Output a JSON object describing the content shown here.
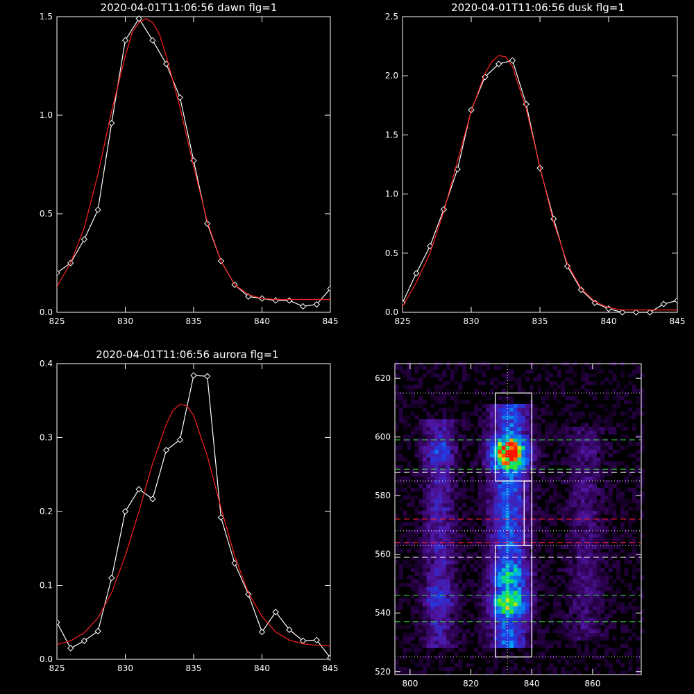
{
  "colors": {
    "background": "#000000",
    "axes": "#ffffff",
    "data_line": "#ffffff",
    "fit_line": "#ff2020",
    "guide_green": "#33dd33",
    "guide_white": "#ffffff",
    "guide_red": "#ff2020"
  },
  "chart_data": [
    {
      "id": "dawn",
      "type": "line",
      "title": "2020-04-01T11:06:56 dawn flg=1",
      "xlim": [
        825,
        845
      ],
      "ylim": [
        0,
        1.5
      ],
      "xticks": [
        825,
        830,
        835,
        840,
        845
      ],
      "xtick_labels": [
        "825",
        "830",
        "835",
        "840",
        "845"
      ],
      "yticks": [
        0,
        0.5,
        1.0,
        1.5
      ],
      "ytick_labels": [
        "0.0",
        "0.5",
        "1.0",
        "1.5"
      ],
      "markers": "diamond",
      "series": [
        {
          "role": "data",
          "x": [
            825,
            826,
            827,
            828,
            829,
            830,
            831,
            832,
            833,
            834,
            835,
            836,
            837,
            838,
            839,
            840,
            841,
            842,
            843,
            844,
            845
          ],
          "y": [
            0.2,
            0.25,
            0.37,
            0.52,
            0.96,
            1.38,
            1.49,
            1.38,
            1.26,
            1.09,
            0.77,
            0.45,
            0.26,
            0.14,
            0.08,
            0.07,
            0.06,
            0.06,
            0.03,
            0.04,
            0.12
          ]
        },
        {
          "role": "fit",
          "x": [
            825,
            826,
            827,
            828,
            829,
            830,
            830.5,
            831,
            831.5,
            832,
            832.5,
            833,
            834,
            835,
            836,
            837,
            838,
            839,
            840,
            841,
            842,
            843,
            844,
            845
          ],
          "y": [
            0.13,
            0.25,
            0.43,
            0.7,
            1.02,
            1.3,
            1.42,
            1.47,
            1.49,
            1.47,
            1.41,
            1.3,
            1.04,
            0.74,
            0.46,
            0.26,
            0.14,
            0.09,
            0.07,
            0.065,
            0.065,
            0.065,
            0.065,
            0.065
          ]
        }
      ]
    },
    {
      "id": "dusk",
      "type": "line",
      "title": "2020-04-01T11:06:56 dusk flg=1",
      "xlim": [
        825,
        845
      ],
      "ylim": [
        0,
        2.5
      ],
      "xticks": [
        825,
        830,
        835,
        840,
        845
      ],
      "xtick_labels": [
        "825",
        "830",
        "835",
        "840",
        "845"
      ],
      "yticks": [
        0,
        0.5,
        1.0,
        1.5,
        2.0,
        2.5
      ],
      "ytick_labels": [
        "0.0",
        "0.5",
        "1.0",
        "1.5",
        "2.0",
        "2.5"
      ],
      "markers": "diamond",
      "series": [
        {
          "role": "data",
          "x": [
            825,
            826,
            827,
            828,
            829,
            830,
            831,
            832,
            833,
            834,
            835,
            836,
            837,
            838,
            839,
            840,
            841,
            842,
            843,
            844,
            845
          ],
          "y": [
            0.08,
            0.33,
            0.56,
            0.87,
            1.21,
            1.71,
            1.99,
            2.1,
            2.13,
            1.76,
            1.22,
            0.79,
            0.39,
            0.19,
            0.08,
            0.03,
            0.0,
            0.0,
            0.0,
            0.07,
            0.1
          ]
        },
        {
          "role": "fit",
          "x": [
            825,
            826,
            827,
            828,
            829,
            830,
            831,
            831.5,
            832,
            832.5,
            833,
            834,
            835,
            836,
            837,
            838,
            839,
            840,
            841,
            842,
            843,
            844,
            845
          ],
          "y": [
            0.05,
            0.25,
            0.5,
            0.85,
            1.28,
            1.7,
            2.02,
            2.12,
            2.17,
            2.16,
            2.08,
            1.72,
            1.23,
            0.76,
            0.41,
            0.2,
            0.09,
            0.04,
            0.02,
            0.02,
            0.02,
            0.02,
            0.02
          ]
        }
      ]
    },
    {
      "id": "aurora",
      "type": "line",
      "title": "2020-04-01T11:06:56 aurora flg=1",
      "xlim": [
        825,
        845
      ],
      "ylim": [
        0,
        0.4
      ],
      "xticks": [
        825,
        830,
        835,
        840,
        845
      ],
      "xtick_labels": [
        "825",
        "830",
        "835",
        "840",
        "845"
      ],
      "yticks": [
        0,
        0.1,
        0.2,
        0.3,
        0.4
      ],
      "ytick_labels": [
        "0.0",
        "0.1",
        "0.2",
        "0.3",
        "0.4"
      ],
      "markers": "diamond",
      "series": [
        {
          "role": "data",
          "x": [
            825,
            826,
            827,
            828,
            829,
            830,
            831,
            832,
            833,
            834,
            835,
            836,
            837,
            838,
            839,
            840,
            841,
            842,
            843,
            844,
            845
          ],
          "y": [
            0.05,
            0.015,
            0.025,
            0.038,
            0.11,
            0.2,
            0.23,
            0.217,
            0.283,
            0.297,
            0.384,
            0.383,
            0.192,
            0.13,
            0.088,
            0.037,
            0.064,
            0.04,
            0.025,
            0.026,
            0.002
          ]
        },
        {
          "role": "fit",
          "x": [
            825,
            826,
            827,
            828,
            829,
            830,
            831,
            832,
            833,
            833.5,
            834,
            834.5,
            835,
            836,
            837,
            838,
            839,
            840,
            841,
            842,
            843,
            844,
            845
          ],
          "y": [
            0.02,
            0.025,
            0.036,
            0.056,
            0.09,
            0.14,
            0.2,
            0.265,
            0.318,
            0.337,
            0.345,
            0.343,
            0.33,
            0.275,
            0.205,
            0.14,
            0.09,
            0.058,
            0.037,
            0.026,
            0.021,
            0.019,
            0.018
          ]
        }
      ]
    },
    {
      "id": "image",
      "type": "heatmap",
      "xlim": [
        795,
        876
      ],
      "ylim": [
        519,
        625
      ],
      "xticks": [
        800,
        820,
        840,
        860
      ],
      "xtick_labels": [
        "800",
        "820",
        "840",
        "860"
      ],
      "yticks": [
        520,
        540,
        560,
        580,
        600,
        620
      ],
      "ytick_labels": [
        "520",
        "540",
        "560",
        "580",
        "600",
        "620"
      ],
      "colormap": "rainbow",
      "emission_bands": [
        {
          "x_center": 809,
          "x_width": 6,
          "y_from": 528,
          "y_to": 606,
          "peak": 0.55,
          "blobs": [
            {
              "y": 594,
              "w": 0.6
            },
            {
              "y": 545,
              "w": 0.55
            }
          ]
        },
        {
          "x_center": 832,
          "x_width": 7,
          "y_from": 527,
          "y_to": 610,
          "peak": 1.0,
          "blobs": [
            {
              "y": 594,
              "w": 1.0
            },
            {
              "y": 543,
              "w": 0.75
            },
            {
              "y": 552,
              "w": 0.6
            }
          ]
        },
        {
          "x_center": 857,
          "x_width": 7,
          "y_from": 530,
          "y_to": 603,
          "peak": 0.32,
          "blobs": [
            {
              "y": 594,
              "w": 0.4
            },
            {
              "y": 550,
              "w": 0.3
            }
          ]
        }
      ],
      "boxes": [
        {
          "x0": 828,
          "x1": 840,
          "y0": 525,
          "y1": 563
        },
        {
          "x0": 828,
          "x1": 840,
          "y0": 585,
          "y1": 615
        }
      ],
      "connector": {
        "x0": 837.5,
        "x1": 840,
        "y0": 563,
        "y1": 585
      },
      "vertical_line_x": 832,
      "hlines": [
        {
          "y": 615,
          "style": "dotted",
          "color": "guide_white"
        },
        {
          "y": 599,
          "style": "dashed",
          "color": "guide_green"
        },
        {
          "y": 589,
          "style": "dashed",
          "color": "guide_green"
        },
        {
          "y": 588,
          "style": "dashed",
          "color": "guide_white"
        },
        {
          "y": 585,
          "style": "dotted",
          "color": "guide_white"
        },
        {
          "y": 572,
          "style": "dashed",
          "color": "guide_red"
        },
        {
          "y": 568,
          "style": "dotted",
          "color": "guide_white"
        },
        {
          "y": 564,
          "style": "dashed",
          "color": "guide_red"
        },
        {
          "y": 563,
          "style": "dotted",
          "color": "guide_white"
        },
        {
          "y": 559,
          "style": "dashed",
          "color": "guide_white"
        },
        {
          "y": 546,
          "style": "dashed",
          "color": "guide_green"
        },
        {
          "y": 537,
          "style": "dashed",
          "color": "guide_green"
        },
        {
          "y": 525,
          "style": "dotted",
          "color": "guide_white"
        }
      ]
    }
  ]
}
